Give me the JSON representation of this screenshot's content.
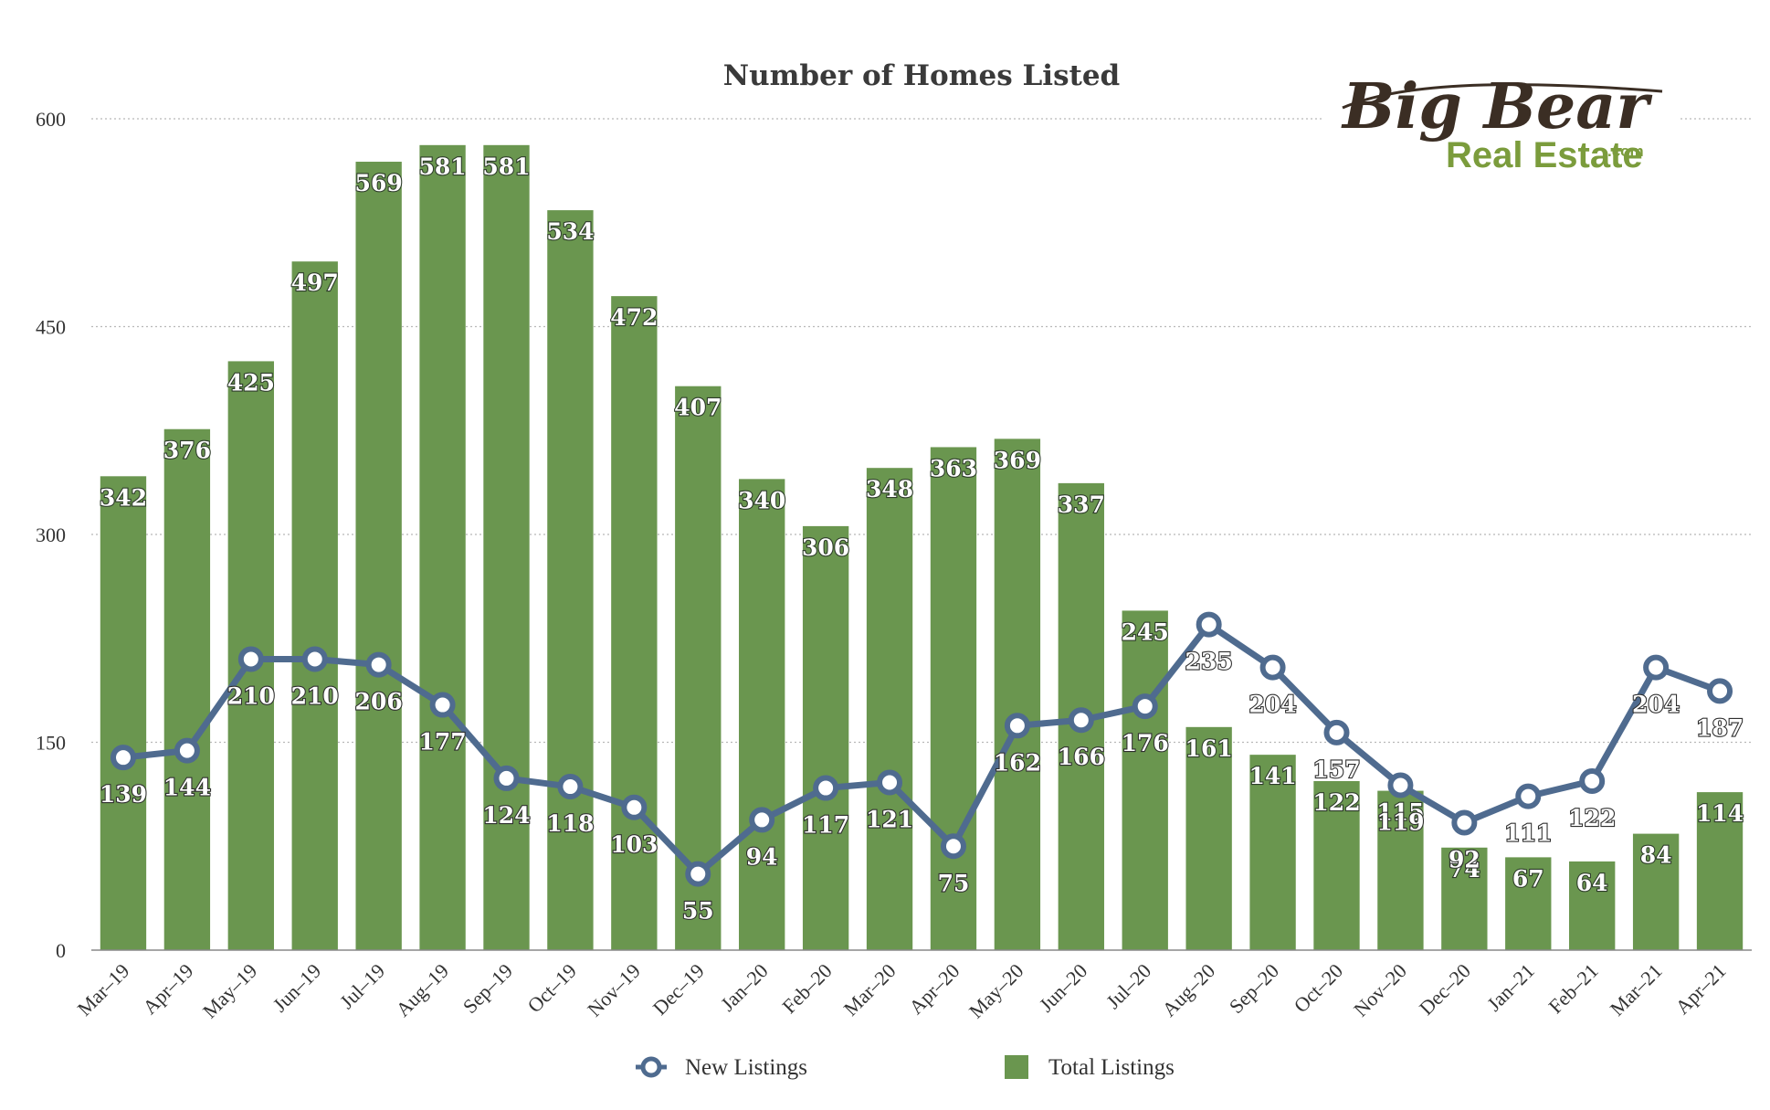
{
  "colors": {
    "bar": "#6a964f",
    "line": "#4f6b8f",
    "grid": "#b8b8b8",
    "axis": "#888888",
    "logo_dark": "#3b2e24",
    "logo_green": "#7b9c3c"
  },
  "logo": {
    "line1": "Big Bear",
    "line2": "Real Estate",
    "suffix": ".com"
  },
  "chart_data": {
    "type": "bar",
    "title": "Number of Homes Listed",
    "xlabel": "",
    "ylabel": "",
    "ylim": [
      0,
      600
    ],
    "yticks": [
      0,
      150,
      300,
      450,
      600
    ],
    "grid": true,
    "legend_position": "bottom",
    "categories": [
      "Mar–19",
      "Apr–19",
      "May–19",
      "Jun–19",
      "Jul–19",
      "Aug–19",
      "Sep–19",
      "Oct–19",
      "Nov–19",
      "Dec–19",
      "Jan–20",
      "Feb–20",
      "Mar–20",
      "Apr–20",
      "May–20",
      "Jun–20",
      "Jul–20",
      "Aug–20",
      "Sep–20",
      "Oct–20",
      "Nov–20",
      "Dec–20",
      "Jan–21",
      "Feb–21",
      "Mar–21",
      "Apr–21"
    ],
    "series": [
      {
        "name": "New Listings",
        "type": "line",
        "values": [
          139,
          144,
          210,
          210,
          206,
          177,
          124,
          118,
          103,
          55,
          94,
          117,
          121,
          75,
          162,
          166,
          176,
          235,
          204,
          157,
          119,
          92,
          111,
          122,
          204,
          187
        ]
      },
      {
        "name": "Total Listings",
        "type": "bar",
        "values": [
          342,
          376,
          425,
          497,
          569,
          581,
          581,
          534,
          472,
          407,
          340,
          306,
          348,
          363,
          369,
          337,
          245,
          161,
          141,
          122,
          115,
          74,
          67,
          64,
          84,
          114
        ]
      }
    ]
  }
}
